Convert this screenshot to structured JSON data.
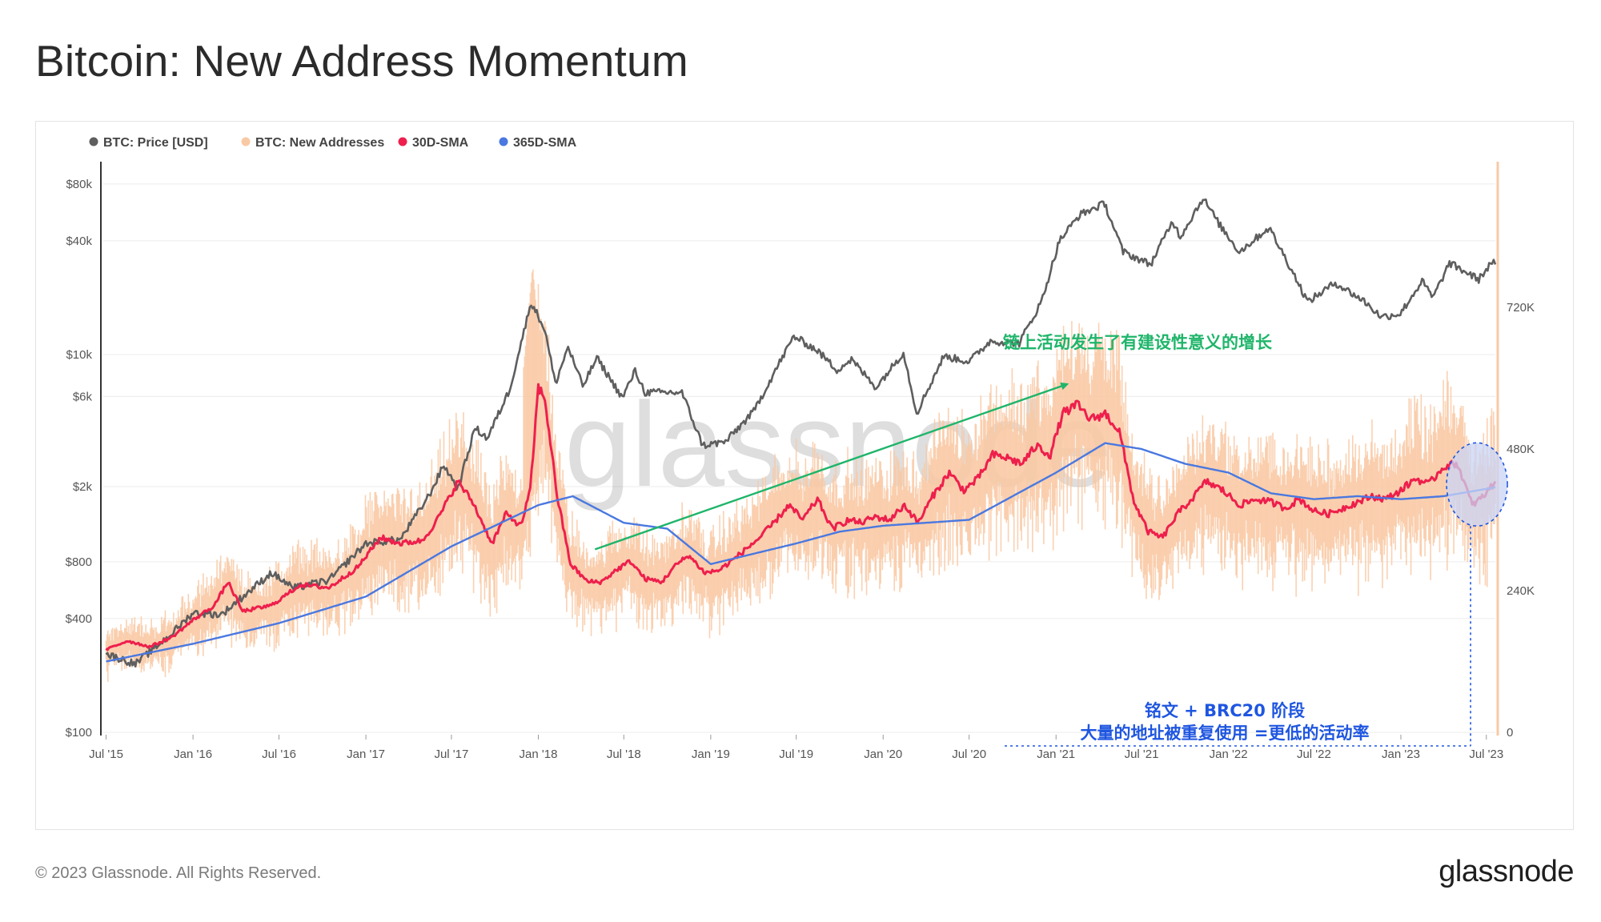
{
  "page": {
    "title": "Bitcoin: New Address Momentum",
    "copyright": "© 2023 Glassnode. All Rights Reserved.",
    "logo": "glassnode",
    "watermark": "glassnode"
  },
  "colors": {
    "price": "#5e5e5e",
    "new_addresses": "#f9c9a4",
    "sma30": "#ee1f4c",
    "sma365": "#4a78e0",
    "annotation_green": "#1fb56a",
    "annotation_blue": "#1f56e0",
    "highlight_fill": "#c9d4f5"
  },
  "chart_data": {
    "type": "line",
    "legend": [
      {
        "key": "price",
        "label": "BTC: Price [USD]"
      },
      {
        "key": "new_addresses",
        "label": "BTC: New Addresses"
      },
      {
        "key": "sma30",
        "label": "30D-SMA"
      },
      {
        "key": "sma365",
        "label": "365D-SMA"
      }
    ],
    "legend_position": "top-left",
    "x_ticks": [
      "Jul '15",
      "Jan '16",
      "Jul '16",
      "Jan '17",
      "Jul '17",
      "Jan '18",
      "Jul '18",
      "Jan '19",
      "Jul '19",
      "Jan '20",
      "Jul '20",
      "Jan '21",
      "Jul '21",
      "Jan '22",
      "Jul '22",
      "Jan '23",
      "Jul '23"
    ],
    "x_range": [
      "2015-06-25",
      "2023-07-20"
    ],
    "y_left": {
      "scale": "log",
      "range": [
        100,
        100000
      ],
      "ticks": [
        {
          "value": 100,
          "label": "$100"
        },
        {
          "value": 400,
          "label": "$400"
        },
        {
          "value": 800,
          "label": "$800"
        },
        {
          "value": 2000,
          "label": "$2k"
        },
        {
          "value": 6000,
          "label": "$6k"
        },
        {
          "value": 10000,
          "label": "$10k"
        },
        {
          "value": 40000,
          "label": "$40k"
        },
        {
          "value": 80000,
          "label": "$80k"
        }
      ]
    },
    "y_right": {
      "scale": "linear",
      "range": [
        0,
        960000
      ],
      "ticks": [
        {
          "value": 0,
          "label": "0"
        },
        {
          "value": 240000,
          "label": "240K"
        },
        {
          "value": 480000,
          "label": "480K"
        },
        {
          "value": 720000,
          "label": "720K"
        }
      ]
    },
    "series": [
      {
        "name": "BTC: Price [USD]",
        "axis": "left",
        "points": [
          [
            "2015-07-01",
            260
          ],
          [
            "2015-09-01",
            230
          ],
          [
            "2015-11-15",
            330
          ],
          [
            "2016-01-01",
            430
          ],
          [
            "2016-03-01",
            420
          ],
          [
            "2016-06-15",
            700
          ],
          [
            "2016-08-01",
            580
          ],
          [
            "2016-10-15",
            640
          ],
          [
            "2017-01-01",
            1000
          ],
          [
            "2017-03-15",
            1050
          ],
          [
            "2017-05-15",
            1800
          ],
          [
            "2017-06-15",
            2600
          ],
          [
            "2017-07-15",
            1950
          ],
          [
            "2017-08-20",
            4100
          ],
          [
            "2017-09-15",
            3600
          ],
          [
            "2017-11-01",
            6500
          ],
          [
            "2017-12-17",
            19000
          ],
          [
            "2018-01-15",
            13500
          ],
          [
            "2018-02-06",
            7000
          ],
          [
            "2018-03-05",
            11000
          ],
          [
            "2018-04-05",
            6800
          ],
          [
            "2018-05-05",
            9600
          ],
          [
            "2018-06-28",
            5900
          ],
          [
            "2018-07-25",
            8200
          ],
          [
            "2018-08-15",
            6300
          ],
          [
            "2018-11-01",
            6300
          ],
          [
            "2018-12-15",
            3300
          ],
          [
            "2019-02-01",
            3450
          ],
          [
            "2019-04-02",
            5000
          ],
          [
            "2019-05-15",
            8000
          ],
          [
            "2019-06-26",
            12500
          ],
          [
            "2019-08-15",
            10500
          ],
          [
            "2019-09-25",
            8300
          ],
          [
            "2019-10-26",
            9400
          ],
          [
            "2019-12-17",
            6700
          ],
          [
            "2020-02-13",
            10300
          ],
          [
            "2020-03-12",
            4900
          ],
          [
            "2020-05-08",
            9800
          ],
          [
            "2020-07-01",
            9200
          ],
          [
            "2020-08-15",
            11800
          ],
          [
            "2020-10-15",
            11500
          ],
          [
            "2020-12-01",
            19000
          ],
          [
            "2021-01-08",
            40000
          ],
          [
            "2021-02-20",
            55000
          ],
          [
            "2021-04-14",
            63000
          ],
          [
            "2021-05-23",
            35000
          ],
          [
            "2021-07-20",
            30000
          ],
          [
            "2021-09-05",
            51000
          ],
          [
            "2021-09-21",
            42000
          ],
          [
            "2021-11-08",
            67500
          ],
          [
            "2021-12-15",
            48000
          ],
          [
            "2022-01-24",
            35000
          ],
          [
            "2022-03-28",
            47000
          ],
          [
            "2022-05-12",
            29000
          ],
          [
            "2022-06-18",
            19000
          ],
          [
            "2022-08-15",
            24000
          ],
          [
            "2022-10-15",
            19200
          ],
          [
            "2022-11-21",
            15800
          ],
          [
            "2022-12-31",
            16500
          ],
          [
            "2023-02-15",
            24500
          ],
          [
            "2023-03-10",
            20000
          ],
          [
            "2023-04-14",
            30500
          ],
          [
            "2023-06-15",
            25000
          ],
          [
            "2023-07-13",
            31000
          ],
          [
            "2023-07-20",
            30000
          ]
        ]
      },
      {
        "name": "30D-SMA",
        "axis": "right",
        "points": [
          [
            "2015-07-01",
            140000
          ],
          [
            "2015-08-15",
            155000
          ],
          [
            "2015-10-01",
            145000
          ],
          [
            "2015-11-15",
            160000
          ],
          [
            "2016-01-01",
            190000
          ],
          [
            "2016-02-15",
            215000
          ],
          [
            "2016-03-15",
            255000
          ],
          [
            "2016-04-15",
            205000
          ],
          [
            "2016-06-15",
            215000
          ],
          [
            "2016-08-15",
            250000
          ],
          [
            "2016-10-15",
            245000
          ],
          [
            "2016-12-15",
            280000
          ],
          [
            "2017-02-01",
            330000
          ],
          [
            "2017-03-15",
            320000
          ],
          [
            "2017-05-01",
            325000
          ],
          [
            "2017-06-01",
            360000
          ],
          [
            "2017-07-15",
            425000
          ],
          [
            "2017-08-15",
            390000
          ],
          [
            "2017-09-25",
            320000
          ],
          [
            "2017-10-25",
            370000
          ],
          [
            "2017-11-25",
            350000
          ],
          [
            "2017-12-15",
            410000
          ],
          [
            "2018-01-01",
            585000
          ],
          [
            "2018-01-15",
            565000
          ],
          [
            "2018-02-10",
            400000
          ],
          [
            "2018-03-10",
            285000
          ],
          [
            "2018-04-15",
            255000
          ],
          [
            "2018-05-15",
            255000
          ],
          [
            "2018-06-15",
            275000
          ],
          [
            "2018-07-15",
            290000
          ],
          [
            "2018-08-15",
            260000
          ],
          [
            "2018-09-20",
            255000
          ],
          [
            "2018-10-15",
            280000
          ],
          [
            "2018-11-15",
            300000
          ],
          [
            "2018-12-20",
            270000
          ],
          [
            "2019-01-20",
            275000
          ],
          [
            "2019-03-01",
            300000
          ],
          [
            "2019-04-15",
            330000
          ],
          [
            "2019-05-15",
            355000
          ],
          [
            "2019-06-15",
            385000
          ],
          [
            "2019-07-15",
            360000
          ],
          [
            "2019-08-15",
            395000
          ],
          [
            "2019-09-15",
            345000
          ],
          [
            "2019-10-20",
            360000
          ],
          [
            "2019-11-15",
            355000
          ],
          [
            "2019-12-15",
            365000
          ],
          [
            "2020-01-15",
            360000
          ],
          [
            "2020-02-15",
            385000
          ],
          [
            "2020-03-15",
            355000
          ],
          [
            "2020-04-15",
            400000
          ],
          [
            "2020-05-20",
            440000
          ],
          [
            "2020-06-20",
            410000
          ],
          [
            "2020-07-20",
            430000
          ],
          [
            "2020-08-20",
            470000
          ],
          [
            "2020-09-20",
            465000
          ],
          [
            "2020-10-20",
            455000
          ],
          [
            "2020-11-20",
            485000
          ],
          [
            "2020-12-20",
            470000
          ],
          [
            "2021-01-15",
            540000
          ],
          [
            "2021-02-15",
            555000
          ],
          [
            "2021-03-15",
            530000
          ],
          [
            "2021-04-15",
            540000
          ],
          [
            "2021-05-15",
            510000
          ],
          [
            "2021-06-15",
            390000
          ],
          [
            "2021-07-15",
            340000
          ],
          [
            "2021-08-15",
            330000
          ],
          [
            "2021-09-15",
            370000
          ],
          [
            "2021-10-15",
            395000
          ],
          [
            "2021-11-15",
            425000
          ],
          [
            "2021-12-20",
            410000
          ],
          [
            "2022-01-25",
            385000
          ],
          [
            "2022-03-01",
            395000
          ],
          [
            "2022-04-01",
            390000
          ],
          [
            "2022-05-01",
            380000
          ],
          [
            "2022-06-01",
            395000
          ],
          [
            "2022-07-01",
            375000
          ],
          [
            "2022-08-01",
            370000
          ],
          [
            "2022-09-01",
            380000
          ],
          [
            "2022-10-01",
            390000
          ],
          [
            "2022-11-01",
            400000
          ],
          [
            "2022-12-01",
            395000
          ],
          [
            "2023-01-01",
            410000
          ],
          [
            "2023-02-01",
            430000
          ],
          [
            "2023-03-01",
            420000
          ],
          [
            "2023-04-01",
            450000
          ],
          [
            "2023-05-01",
            455000
          ],
          [
            "2023-06-01",
            385000
          ],
          [
            "2023-06-25",
            400000
          ],
          [
            "2023-07-20",
            425000
          ]
        ]
      },
      {
        "name": "365D-SMA",
        "axis": "right",
        "points": [
          [
            "2015-07-01",
            120000
          ],
          [
            "2016-01-01",
            150000
          ],
          [
            "2016-07-01",
            185000
          ],
          [
            "2017-01-01",
            230000
          ],
          [
            "2017-07-01",
            315000
          ],
          [
            "2018-01-01",
            385000
          ],
          [
            "2018-03-15",
            400000
          ],
          [
            "2018-07-01",
            355000
          ],
          [
            "2018-10-01",
            345000
          ],
          [
            "2019-01-01",
            285000
          ],
          [
            "2019-07-01",
            320000
          ],
          [
            "2019-10-01",
            340000
          ],
          [
            "2020-01-01",
            350000
          ],
          [
            "2020-07-01",
            360000
          ],
          [
            "2020-10-01",
            400000
          ],
          [
            "2021-01-01",
            440000
          ],
          [
            "2021-04-15",
            490000
          ],
          [
            "2021-07-01",
            480000
          ],
          [
            "2021-10-01",
            455000
          ],
          [
            "2022-01-01",
            440000
          ],
          [
            "2022-04-01",
            405000
          ],
          [
            "2022-07-01",
            395000
          ],
          [
            "2022-10-01",
            400000
          ],
          [
            "2023-01-01",
            395000
          ],
          [
            "2023-04-01",
            400000
          ],
          [
            "2023-07-20",
            415000
          ]
        ]
      },
      {
        "name": "BTC: New Addresses",
        "axis": "right",
        "note": "daily series plotted as a band around the 30D-SMA",
        "band_spread_ratio": 0.18,
        "band_peaks": [
          [
            "2017-12-20",
            790000
          ],
          [
            "2021-01-08",
            640000
          ],
          [
            "2023-05-08",
            560000
          ]
        ]
      }
    ]
  },
  "annotations": {
    "green_text": "链上活动发生了有建设性意义的增长",
    "green_arrow_from": [
      "2018-05-01",
      310000
    ],
    "green_arrow_to": [
      "2021-01-25",
      590000
    ],
    "blue_line1": "铭文 + BRC20 阶段",
    "blue_line2": "大量的地址被重复使用 =更低的活动率",
    "highlight_center": [
      "2023-06-01",
      420000
    ]
  }
}
